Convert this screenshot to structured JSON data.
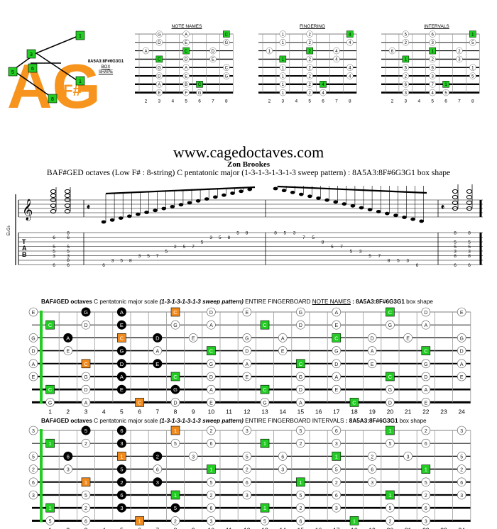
{
  "logo": {
    "big_letters": "AG",
    "sub_letter": "F#",
    "caption_line1": "8A5A3:8F#6G3G1",
    "caption_line2": "BOX",
    "caption_line3": "SHAPE",
    "box_labels": [
      "1",
      "3",
      "5",
      "1",
      "6",
      "8"
    ]
  },
  "mini_diagrams": {
    "titles": [
      "NOTE NAMES",
      "FINGERING",
      "INTERVALS"
    ],
    "fret_numbers": [
      "2",
      "3",
      "4",
      "5",
      "6",
      "7",
      "8"
    ]
  },
  "site_title": "www.cagedoctaves.com",
  "author": "Zon Brookes",
  "subtitle": "BAF#GED octaves (Low F# : 8-string) C pentatonic major (1-3-1-3-1-3-1-3 sweep pattern) : 8A5A3:8F#6G3G1 box shape",
  "tab": {
    "tuning_label": "E♭G♭",
    "tab_letters": [
      "T",
      "A",
      "B"
    ],
    "chord1": [
      "6",
      "5",
      "5",
      "3",
      "6",
      "6"
    ],
    "chord2": [
      "8",
      "5",
      "5",
      "8",
      "8",
      "6",
      "6"
    ]
  },
  "fretboard1": {
    "head_bold": "BAF#GED octaves",
    "head_mid": " C pentatonic major scale ",
    "head_italic": "(1-3-1-3-1-3-1-3 sweep pattern)",
    "head_rest": " ENTIRE FINGERBOARD ",
    "head_u": "NOTE NAMES",
    "head_shape": " : 8A5A3:8F#6G3G1",
    "head_end": " box shape"
  },
  "fretboard2": {
    "head_bold": "BAF#GED octaves",
    "head_mid": " C pentatonic major scale ",
    "head_italic": "(1-3-1-3-1-3-1-3 sweep pattern)",
    "head_rest": " ENTIRE FINGERBOARD ",
    "head_u": "INTERVALS",
    "head_shape": " : 8A5A3:8F#6G3G1",
    "head_end": " box shape"
  },
  "fret_numbers": [
    "1",
    "2",
    "3",
    "4",
    "5",
    "6",
    "7",
    "8",
    "9",
    "10",
    "11",
    "12",
    "13",
    "14",
    "15",
    "16",
    "17",
    "18",
    "19",
    "20",
    "21",
    "22",
    "23",
    "24"
  ],
  "colors": {
    "green": "#22cc22",
    "orange": "#f08a1c",
    "logo_orange": "#f7941d"
  }
}
